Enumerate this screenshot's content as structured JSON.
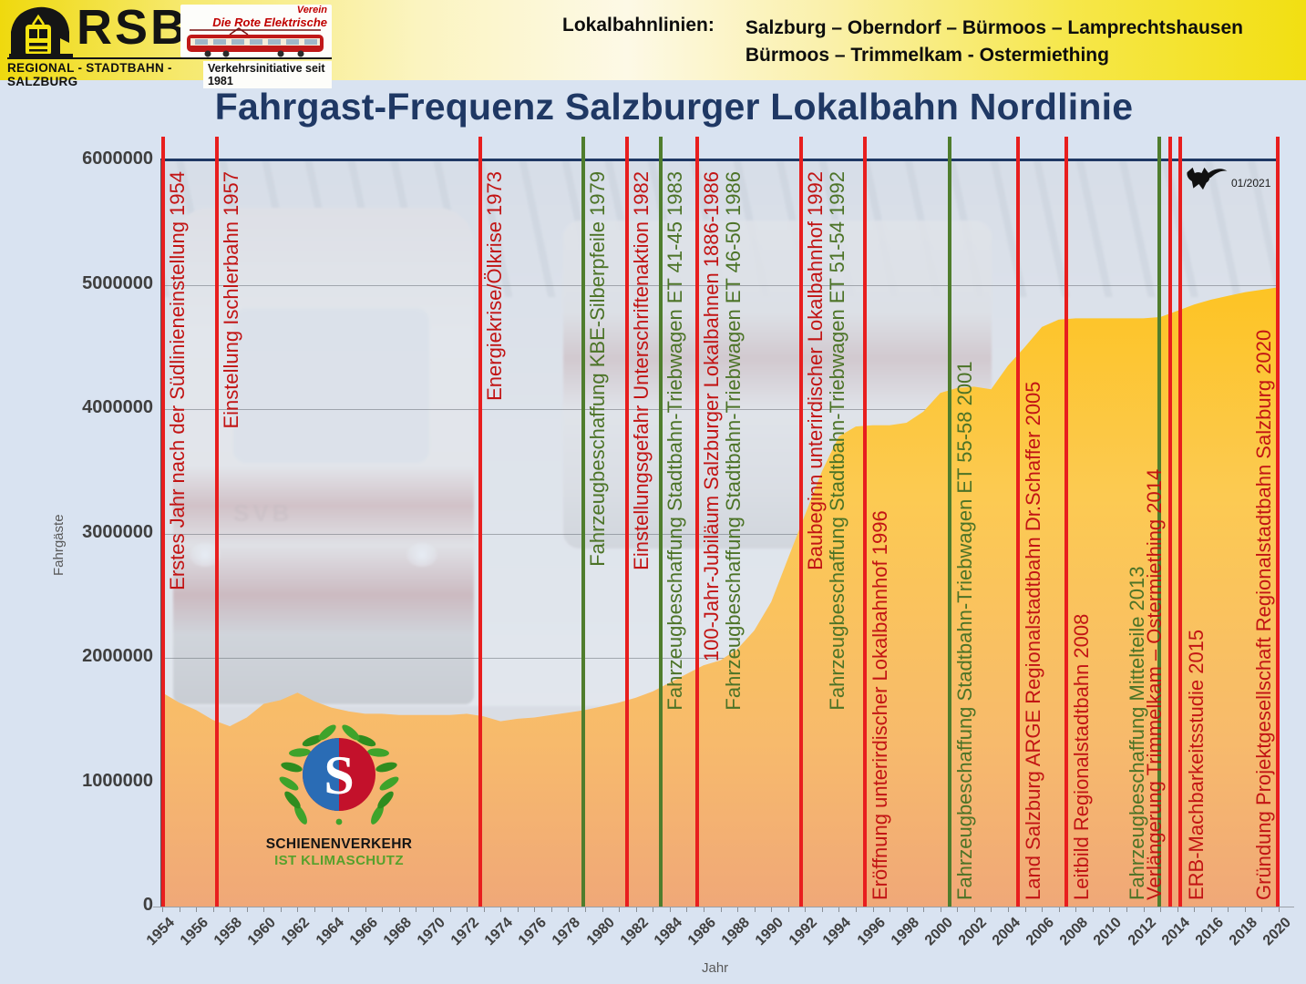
{
  "header": {
    "logo": {
      "rsb": "RSB",
      "verein_top": "Verein",
      "verein_bottom": "Die Rote Elektrische",
      "footer_left": "REGIONAL - STADTBAHN - SALZBURG",
      "footer_right": "Verkehrsinitiative seit 1981"
    },
    "routes_label": "Lokalbahnlinien:",
    "route1": "Salzburg – Oberndorf – Bürmoos – Lamprechtshausen",
    "route2": "Bürmoos – Trimmelkam - Ostermiething"
  },
  "title": "Fahrgast-Frequenz Salzburger Lokalbahn Nordlinie",
  "stamp": {
    "text": "01/2021"
  },
  "emblem": {
    "line1": "SCHIENENVERKEHR",
    "line2": "IST KLIMASCHUTZ",
    "letter": "S"
  },
  "axes": {
    "y_label": "Fahrgäste",
    "x_label": "Jahr",
    "y_ticks": [
      "0",
      "1000000",
      "2000000",
      "3000000",
      "4000000",
      "5000000",
      "6000000"
    ],
    "x_tick_years": [
      1954,
      1956,
      1958,
      1960,
      1962,
      1964,
      1966,
      1968,
      1970,
      1972,
      1974,
      1976,
      1978,
      1980,
      1982,
      1984,
      1986,
      1988,
      1990,
      1992,
      1994,
      1996,
      1998,
      2000,
      2002,
      2004,
      2006,
      2008,
      2010,
      2012,
      2014,
      2016,
      2018,
      2020
    ]
  },
  "colors": {
    "red_line": "#e81e1e",
    "green_line": "#4f7d2d",
    "red_text": "#c21414",
    "green_text": "#4c7327",
    "navy": "#1f3864",
    "area_top": "#fec008",
    "area_mid": "#fcca52",
    "area_low": "#f7ba6c",
    "area_bottom": "#f0a878"
  },
  "events": [
    {
      "year": 1954,
      "line": true,
      "line_color": "red",
      "label": "Erstes Jahr nach der Südlinieneinstellung 1954",
      "label_color": "red",
      "anchor": "top",
      "dx": 1,
      "label_dx": 4
    },
    {
      "year": 1957,
      "line": true,
      "line_color": "red",
      "label": "Einstellung Ischlerbahn 1957",
      "label_color": "red",
      "anchor": "top",
      "dx": 4,
      "label_dx": 4
    },
    {
      "year": 1973,
      "line": true,
      "line_color": "red",
      "label": "Energiekrise/Ölkrise 1973",
      "label_color": "red",
      "anchor": "top",
      "dx": -4,
      "label_dx": 4
    },
    {
      "year": 1979,
      "line": true,
      "line_color": "green",
      "label": "Fahrzeugbeschaffung KBE-Silberpfeile 1979",
      "label_color": "green",
      "anchor": "top",
      "dx": -2,
      "label_dx": 4
    },
    {
      "year": 1982,
      "line": true,
      "line_color": "red",
      "label": "Einstellungsgefahr Unterschriftenaktion 1982",
      "label_color": "red",
      "anchor": "top",
      "dx": -10,
      "label_dx": 4
    },
    {
      "year": 1983,
      "line": true,
      "line_color": "green",
      "label": "Fahrzeugbeschaffung Stadtbahn-Triebwagen ET 41-45 1983",
      "label_color": "green",
      "anchor": "top",
      "dx": 9,
      "label_dx": 4
    },
    {
      "year": 1986,
      "line": true,
      "line_color": "red",
      "label": "100-Jahr-Jubiläum Salzburger Lokalbahnen 1886-1986",
      "label_color": "red",
      "anchor": "top",
      "dx": -7,
      "label_dx": 4
    },
    {
      "year": 1986,
      "line": false,
      "line_color": "green",
      "label": "Fahrzeugbeschaffung Stadtbahn-Triebwagen ET 46-50 1986",
      "label_color": "green",
      "anchor": "top",
      "dx": -7,
      "label_dx": 28
    },
    {
      "year": 1992,
      "line": true,
      "line_color": "red",
      "label": "Baubeginn unterirdischer Lokalbahnhof 1992",
      "label_color": "red",
      "anchor": "top",
      "dx": -4,
      "label_dx": 4
    },
    {
      "year": 1992,
      "line": false,
      "line_color": "green",
      "label": "Fahrzeugbeschaffung Stadtbahn-Triebwagen ET 51-54 1992",
      "label_color": "green",
      "anchor": "top",
      "dx": -4,
      "label_dx": 28
    },
    {
      "year": 1996,
      "line": true,
      "line_color": "red",
      "label": "Eröffnung unterirdischer Lokalbahnhof 1996",
      "label_color": "red",
      "anchor": "bottom",
      "dx": -9,
      "label_dx": 5
    },
    {
      "year": 2001,
      "line": true,
      "line_color": "green",
      "label": "Fahrzeugbeschaffung Stadtbahn-Triebwagen ET 55-58 2001",
      "label_color": "green",
      "anchor": "bottom",
      "dx": -8,
      "label_dx": 5
    },
    {
      "year": 2005,
      "line": true,
      "line_color": "red",
      "label": "Land Salzburg ARGE Regionalstadtbahn Dr.Schaffer 2005",
      "label_color": "red",
      "anchor": "bottom",
      "dx": -8,
      "label_dx": 5
    },
    {
      "year": 2008,
      "line": true,
      "line_color": "red",
      "label": "Leitbild Regionalstadtbahn 2008",
      "label_color": "red",
      "anchor": "bottom",
      "dx": -10,
      "label_dx": 5
    },
    {
      "year": 2013,
      "line": true,
      "line_color": "green",
      "label": "Fahrzeugbeschaffung Mittelteile 2013",
      "label_color": "green",
      "anchor": "bottom",
      "dx": -1,
      "label_dx": -36
    },
    {
      "year": 2014,
      "line": true,
      "line_color": "red",
      "label": "Verlängerung Trimmelkam – Ostermiething 2014",
      "label_color": "red",
      "anchor": "bottom",
      "dx": -8,
      "label_dx": -29
    },
    {
      "year": 2015,
      "line": true,
      "line_color": "red",
      "label": "ERB-Machbarkeitsstudie 2015",
      "label_color": "red",
      "anchor": "bottom",
      "dx": -15,
      "label_dx": 6
    },
    {
      "year": 2020,
      "line": true,
      "line_color": "red",
      "label": "Gründung Projektgesellschaft Regionalstadtbahn Salzburg 2020",
      "label_color": "red",
      "anchor": "bottom",
      "dx": -1,
      "label_dx": -27
    }
  ],
  "chart_data": {
    "type": "area",
    "title": "Fahrgast-Frequenz Salzburger Lokalbahn Nordlinie",
    "xlabel": "Jahr",
    "ylabel": "Fahrgäste",
    "ylim": [
      0,
      6000000
    ],
    "grid": true,
    "x": [
      1954,
      1955,
      1956,
      1957,
      1958,
      1959,
      1960,
      1961,
      1962,
      1963,
      1964,
      1965,
      1966,
      1967,
      1968,
      1969,
      1970,
      1971,
      1972,
      1973,
      1974,
      1975,
      1976,
      1977,
      1978,
      1979,
      1980,
      1981,
      1982,
      1983,
      1984,
      1985,
      1986,
      1987,
      1988,
      1989,
      1990,
      1991,
      1992,
      1993,
      1994,
      1995,
      1996,
      1997,
      1998,
      1999,
      2000,
      2001,
      2002,
      2003,
      2004,
      2005,
      2006,
      2007,
      2008,
      2009,
      2010,
      2011,
      2012,
      2013,
      2014,
      2015,
      2016,
      2017,
      2018,
      2019,
      2020
    ],
    "values": [
      1720000,
      1640000,
      1580000,
      1500000,
      1450000,
      1520000,
      1630000,
      1660000,
      1720000,
      1650000,
      1600000,
      1570000,
      1550000,
      1550000,
      1540000,
      1540000,
      1540000,
      1540000,
      1550000,
      1530000,
      1490000,
      1510000,
      1520000,
      1540000,
      1560000,
      1580000,
      1610000,
      1640000,
      1680000,
      1730000,
      1800000,
      1870000,
      1940000,
      1980000,
      2070000,
      2220000,
      2450000,
      2800000,
      3150000,
      3500000,
      3780000,
      3860000,
      3870000,
      3870000,
      3890000,
      3980000,
      4130000,
      4170000,
      4180000,
      4160000,
      4350000,
      4500000,
      4660000,
      4720000,
      4730000,
      4730000,
      4730000,
      4730000,
      4730000,
      4740000,
      4790000,
      4840000,
      4880000,
      4910000,
      4940000,
      4960000,
      4980000
    ]
  }
}
